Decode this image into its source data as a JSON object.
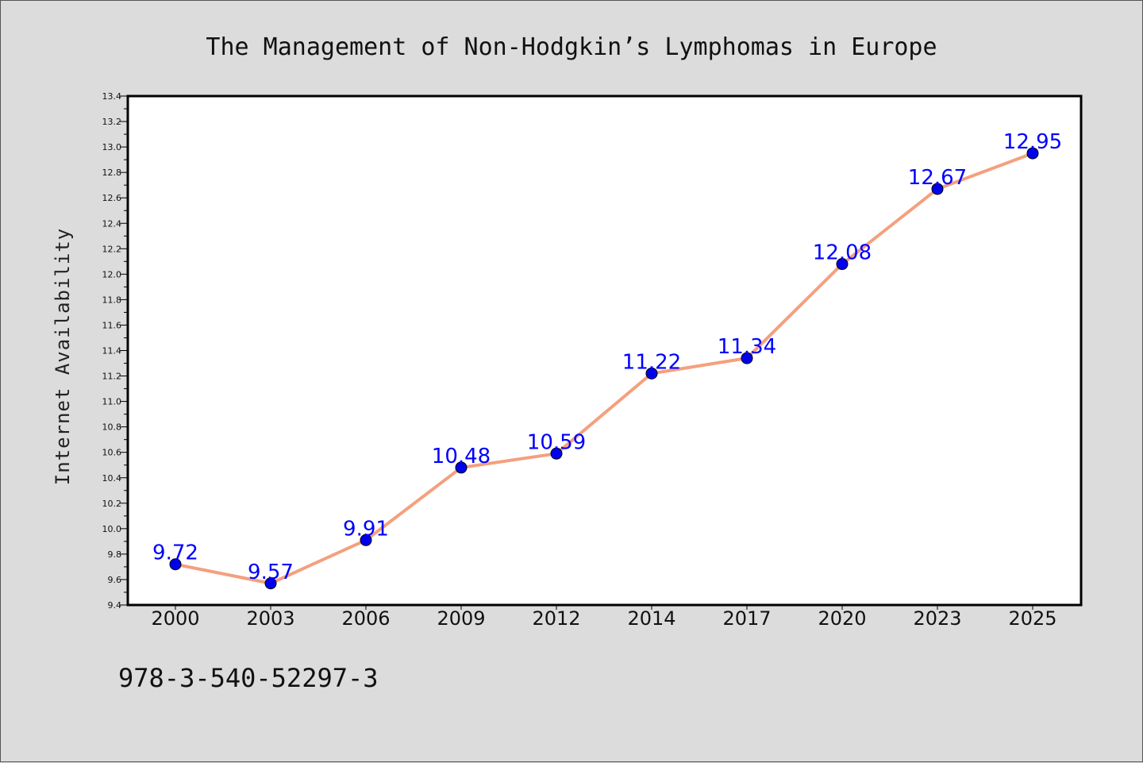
{
  "chart_data": {
    "type": "line",
    "title": "The Management of Non-Hodgkin’s Lymphomas in Europe",
    "xlabel": "",
    "ylabel": "Internet Availability",
    "categories": [
      "2000",
      "2003",
      "2006",
      "2009",
      "2012",
      "2014",
      "2017",
      "2020",
      "2023",
      "2025"
    ],
    "series": [
      {
        "values": [
          9.72,
          9.57,
          9.91,
          10.48,
          10.59,
          11.22,
          11.34,
          12.08,
          12.67,
          12.95
        ]
      }
    ],
    "data_labels": [
      "9.72",
      "9.57",
      "9.91",
      "10.48",
      "10.59",
      "11.22",
      "11.34",
      "12.08",
      "12.67",
      "12.95"
    ],
    "ylim": [
      9.4,
      13.4
    ],
    "yticks": [
      "9.4",
      "9.6",
      "9.8",
      "10.0",
      "10.2",
      "10.4",
      "10.6",
      "10.8",
      "11.0",
      "11.2",
      "11.4",
      "11.6",
      "11.8",
      "12.0",
      "12.2",
      "12.4",
      "12.6",
      "12.8",
      "13.0",
      "13.2",
      "13.4"
    ],
    "grid": false,
    "legend": "none",
    "line_color": "#f4a07e",
    "marker_color": "#0000ee",
    "label_color": "#0000ff"
  },
  "footnote": "978-3-540-52297-3"
}
